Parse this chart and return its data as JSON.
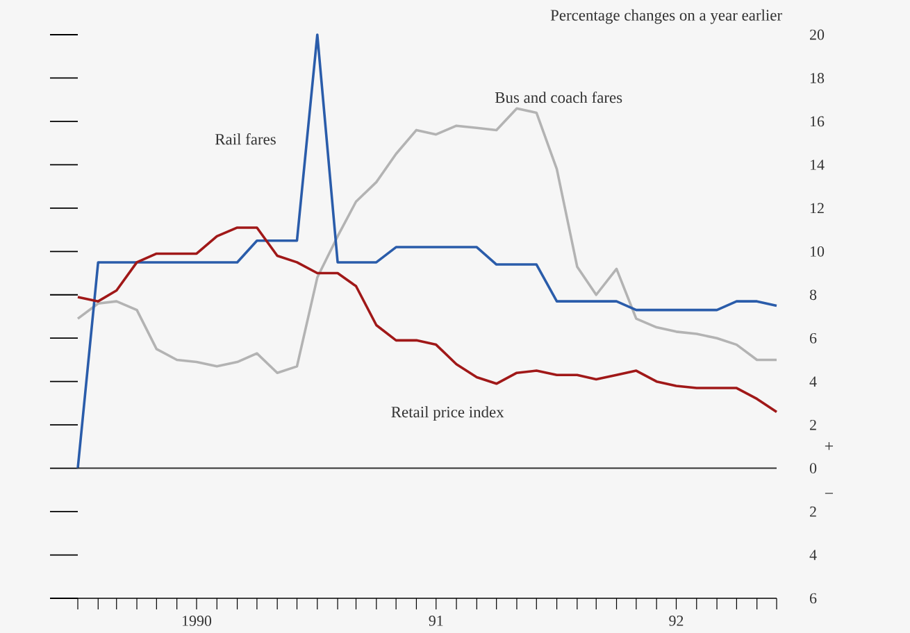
{
  "chart_data": {
    "type": "line",
    "ylabel": "Percentage changes on a year earlier",
    "x": [
      "1990-01",
      "1990-02",
      "1990-03",
      "1990-04",
      "1990-05",
      "1990-06",
      "1990-07",
      "1990-08",
      "1990-09",
      "1990-10",
      "1990-11",
      "1990-12",
      "1991-01",
      "1991-02",
      "1991-03",
      "1991-04",
      "1991-05",
      "1991-06",
      "1991-07",
      "1991-08",
      "1991-09",
      "1991-10",
      "1991-11",
      "1991-12",
      "1992-01",
      "1992-02",
      "1992-03",
      "1992-04",
      "1992-05",
      "1992-06",
      "1992-07",
      "1992-08",
      "1992-09",
      "1992-10",
      "1992-11",
      "1992-12"
    ],
    "series": [
      {
        "name": "Bus and coach fares",
        "color": "#b3b3b3",
        "values": [
          6.9,
          7.6,
          7.7,
          7.3,
          5.5,
          5.0,
          4.9,
          4.7,
          4.9,
          5.3,
          4.4,
          4.7,
          8.8,
          10.7,
          12.3,
          13.2,
          14.5,
          15.6,
          15.4,
          15.8,
          15.7,
          15.6,
          16.6,
          16.4,
          13.8,
          9.3,
          8.0,
          9.2,
          6.9,
          6.5,
          6.3,
          6.2,
          6.0,
          5.7,
          5.0,
          5.0
        ]
      },
      {
        "name": "Rail fares",
        "color": "#2a5caa",
        "values": [
          0,
          9.5,
          9.5,
          9.5,
          9.5,
          9.5,
          9.5,
          9.5,
          9.5,
          10.5,
          10.5,
          10.5,
          20,
          9.5,
          9.5,
          9.5,
          10.2,
          10.2,
          10.2,
          10.2,
          10.2,
          9.4,
          9.4,
          9.4,
          7.7,
          7.7,
          7.7,
          7.7,
          7.3,
          7.3,
          7.3,
          7.3,
          7.3,
          7.7,
          7.7,
          7.5
        ]
      },
      {
        "name": "Retail price index",
        "color": "#a01818",
        "values": [
          7.9,
          7.7,
          8.2,
          9.5,
          9.9,
          9.9,
          9.9,
          10.7,
          11.1,
          11.1,
          9.8,
          9.5,
          9.0,
          9.0,
          8.4,
          6.6,
          5.9,
          5.9,
          5.7,
          4.8,
          4.2,
          3.9,
          4.4,
          4.5,
          4.3,
          4.3,
          4.1,
          4.3,
          4.5,
          4.0,
          3.8,
          3.7,
          3.7,
          3.7,
          3.2,
          2.6
        ]
      }
    ],
    "xlim": [
      "1990-01",
      "1992-12"
    ],
    "xticks": [
      {
        "value": "1990-01",
        "label": null
      },
      {
        "value": "1990-02",
        "label": null
      },
      {
        "value": "1990-03",
        "label": null
      },
      {
        "value": "1990-04",
        "label": null
      },
      {
        "value": "1990-05",
        "label": null
      },
      {
        "value": "1990-06",
        "label": null
      },
      {
        "value": "1990-07",
        "label": "1990"
      },
      {
        "value": "1990-08",
        "label": null
      },
      {
        "value": "1990-09",
        "label": null
      },
      {
        "value": "1990-10",
        "label": null
      },
      {
        "value": "1990-11",
        "label": null
      },
      {
        "value": "1990-12",
        "label": null
      },
      {
        "value": "1991-01",
        "label": null
      },
      {
        "value": "1991-02",
        "label": null
      },
      {
        "value": "1991-03",
        "label": null
      },
      {
        "value": "1991-04",
        "label": null
      },
      {
        "value": "1991-05",
        "label": null
      },
      {
        "value": "1991-06",
        "label": null
      },
      {
        "value": "1991-07",
        "label": "91"
      },
      {
        "value": "1991-08",
        "label": null
      },
      {
        "value": "1991-09",
        "label": null
      },
      {
        "value": "1991-10",
        "label": null
      },
      {
        "value": "1991-11",
        "label": null
      },
      {
        "value": "1991-12",
        "label": null
      },
      {
        "value": "1992-01",
        "label": null
      },
      {
        "value": "1992-02",
        "label": null
      },
      {
        "value": "1992-03",
        "label": null
      },
      {
        "value": "1992-04",
        "label": null
      },
      {
        "value": "1992-05",
        "label": null
      },
      {
        "value": "1992-06",
        "label": null
      },
      {
        "value": "1992-07",
        "label": "92"
      },
      {
        "value": "1992-08",
        "label": null
      },
      {
        "value": "1992-09",
        "label": null
      },
      {
        "value": "1992-10",
        "label": null
      },
      {
        "value": "1992-11",
        "label": null
      },
      {
        "value": "1992-12",
        "label": null
      }
    ],
    "ylim": [
      -6,
      20
    ],
    "yticks": [
      {
        "value": -6,
        "label": "6"
      },
      {
        "value": -4,
        "label": "4"
      },
      {
        "value": -2,
        "label": "2"
      },
      0,
      2,
      4,
      6,
      8,
      10,
      12,
      14,
      16,
      18,
      20
    ],
    "ref_lines": [
      {
        "axis": "y",
        "value": 0,
        "color": "#333333"
      }
    ],
    "annotations": [
      "+",
      "−"
    ],
    "legend": false,
    "grid": false,
    "marker": "none",
    "line_style": "solid"
  }
}
